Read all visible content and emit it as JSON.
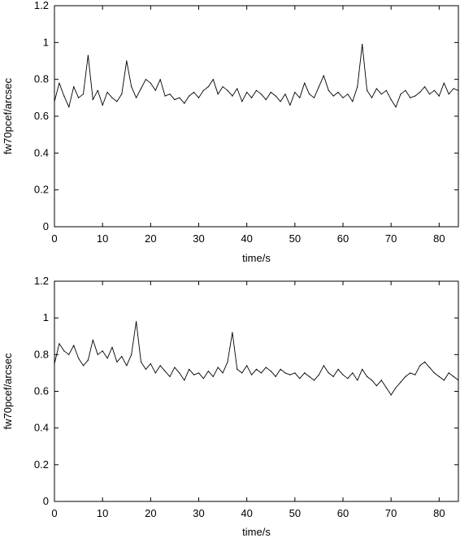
{
  "chart_data": [
    {
      "type": "line",
      "xlabel": "time/s",
      "ylabel": "fw70pcef/arcsec",
      "xlim": [
        0,
        84
      ],
      "ylim": [
        0,
        1.2
      ],
      "xticks": [
        "0",
        "10",
        "20",
        "30",
        "40",
        "50",
        "60",
        "70",
        "80"
      ],
      "yticks": [
        "0",
        "0.2",
        "0.4",
        "0.6",
        "0.8",
        "1",
        "1.2"
      ],
      "grid": false,
      "series": [
        {
          "color": "#000000",
          "x": [
            0,
            1,
            2,
            3,
            4,
            5,
            6,
            7,
            8,
            9,
            10,
            11,
            12,
            13,
            14,
            15,
            16,
            17,
            18,
            19,
            20,
            21,
            22,
            23,
            24,
            25,
            26,
            27,
            28,
            29,
            30,
            31,
            32,
            33,
            34,
            35,
            36,
            37,
            38,
            39,
            40,
            41,
            42,
            43,
            44,
            45,
            46,
            47,
            48,
            49,
            50,
            51,
            52,
            53,
            54,
            55,
            56,
            57,
            58,
            59,
            60,
            61,
            62,
            63,
            64,
            65,
            66,
            67,
            68,
            69,
            70,
            71,
            72,
            73,
            74,
            75,
            76,
            77,
            78,
            79,
            80,
            81,
            82,
            83,
            84
          ],
          "y": [
            0.68,
            0.78,
            0.71,
            0.65,
            0.76,
            0.7,
            0.72,
            0.93,
            0.69,
            0.74,
            0.66,
            0.73,
            0.7,
            0.68,
            0.72,
            0.9,
            0.76,
            0.7,
            0.75,
            0.8,
            0.78,
            0.74,
            0.8,
            0.71,
            0.72,
            0.69,
            0.7,
            0.67,
            0.71,
            0.73,
            0.7,
            0.74,
            0.76,
            0.8,
            0.72,
            0.76,
            0.74,
            0.71,
            0.75,
            0.68,
            0.73,
            0.7,
            0.74,
            0.72,
            0.69,
            0.73,
            0.71,
            0.68,
            0.72,
            0.66,
            0.73,
            0.7,
            0.78,
            0.72,
            0.7,
            0.76,
            0.82,
            0.74,
            0.71,
            0.73,
            0.7,
            0.72,
            0.68,
            0.76,
            0.99,
            0.74,
            0.7,
            0.75,
            0.72,
            0.74,
            0.69,
            0.65,
            0.72,
            0.74,
            0.7,
            0.71,
            0.73,
            0.76,
            0.72,
            0.74,
            0.71,
            0.78,
            0.72,
            0.75,
            0.74
          ]
        }
      ]
    },
    {
      "type": "line",
      "xlabel": "time/s",
      "ylabel": "fw70pcef/arcsec",
      "xlim": [
        0,
        84
      ],
      "ylim": [
        0,
        1.2
      ],
      "xticks": [
        "0",
        "10",
        "20",
        "30",
        "40",
        "50",
        "60",
        "70",
        "80"
      ],
      "yticks": [
        "0",
        "0.2",
        "0.4",
        "0.6",
        "0.8",
        "1",
        "1.2"
      ],
      "grid": false,
      "series": [
        {
          "color": "#000000",
          "x": [
            0,
            1,
            2,
            3,
            4,
            5,
            6,
            7,
            8,
            9,
            10,
            11,
            12,
            13,
            14,
            15,
            16,
            17,
            18,
            19,
            20,
            21,
            22,
            23,
            24,
            25,
            26,
            27,
            28,
            29,
            30,
            31,
            32,
            33,
            34,
            35,
            36,
            37,
            38,
            39,
            40,
            41,
            42,
            43,
            44,
            45,
            46,
            47,
            48,
            49,
            50,
            51,
            52,
            53,
            54,
            55,
            56,
            57,
            58,
            59,
            60,
            61,
            62,
            63,
            64,
            65,
            66,
            67,
            68,
            69,
            70,
            71,
            72,
            73,
            74,
            75,
            76,
            77,
            78,
            79,
            80,
            81,
            82,
            83,
            84
          ],
          "y": [
            0.75,
            0.86,
            0.82,
            0.8,
            0.85,
            0.78,
            0.74,
            0.77,
            0.88,
            0.8,
            0.82,
            0.78,
            0.84,
            0.76,
            0.79,
            0.74,
            0.8,
            0.98,
            0.76,
            0.72,
            0.75,
            0.7,
            0.74,
            0.71,
            0.68,
            0.73,
            0.7,
            0.66,
            0.72,
            0.69,
            0.7,
            0.67,
            0.71,
            0.68,
            0.73,
            0.7,
            0.76,
            0.92,
            0.72,
            0.7,
            0.74,
            0.69,
            0.72,
            0.7,
            0.73,
            0.71,
            0.68,
            0.72,
            0.7,
            0.69,
            0.7,
            0.67,
            0.7,
            0.68,
            0.66,
            0.69,
            0.74,
            0.7,
            0.68,
            0.72,
            0.69,
            0.67,
            0.7,
            0.66,
            0.72,
            0.68,
            0.66,
            0.63,
            0.66,
            0.62,
            0.58,
            0.62,
            0.65,
            0.68,
            0.7,
            0.69,
            0.74,
            0.76,
            0.73,
            0.7,
            0.68,
            0.66,
            0.7,
            0.68,
            0.66
          ]
        }
      ]
    }
  ]
}
